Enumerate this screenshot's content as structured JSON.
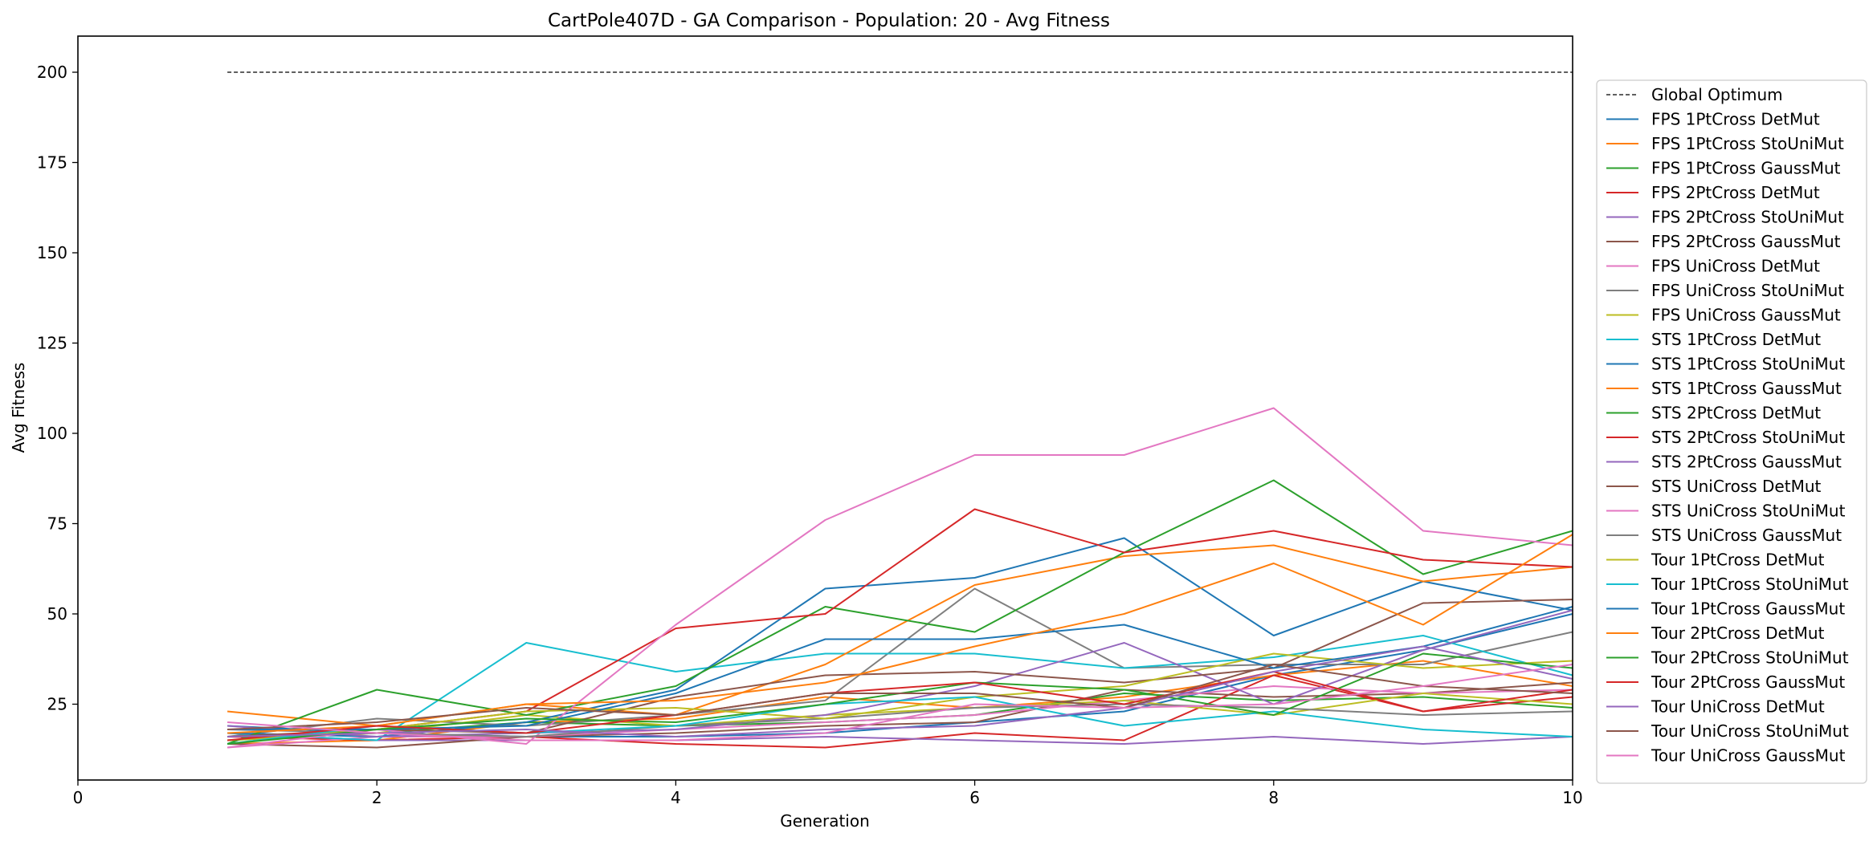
{
  "chart_data": {
    "type": "line",
    "title": "CartPole407D - GA Comparison - Population: 20 - Avg Fitness",
    "xlabel": "Generation",
    "ylabel": "Avg Fitness",
    "xlim": [
      0,
      10
    ],
    "ylim": [
      4,
      210
    ],
    "xticks": [
      0,
      2,
      4,
      6,
      8,
      10
    ],
    "yticks": [
      25,
      50,
      75,
      100,
      125,
      150,
      175,
      200
    ],
    "grid": false,
    "legend_position": "right, outside plot",
    "x": [
      1,
      2,
      3,
      4,
      5,
      6,
      7,
      8,
      9,
      10
    ],
    "reference_line": {
      "name": "Global Optimum",
      "y": 200,
      "x_from": 1,
      "x_to": 10,
      "color": "#000000",
      "style": "dashed"
    },
    "series": [
      {
        "name": "FPS 1PtCross DetMut",
        "color": "#1f77b4",
        "values": [
          19,
          17,
          16,
          16,
          17,
          20,
          23,
          33,
          40,
          50
        ]
      },
      {
        "name": "FPS 1PtCross StoUniMut",
        "color": "#ff7f0e",
        "values": [
          14,
          15,
          20,
          21,
          27,
          24,
          27,
          33,
          37,
          30
        ]
      },
      {
        "name": "FPS 1PtCross GaussMut",
        "color": "#2ca02c",
        "values": [
          15,
          17,
          20,
          19,
          20,
          22,
          28,
          26,
          27,
          24
        ]
      },
      {
        "name": "FPS 2PtCross DetMut",
        "color": "#d62728",
        "values": [
          16,
          15,
          16,
          14,
          13,
          17,
          15,
          33,
          23,
          27
        ]
      },
      {
        "name": "FPS 2PtCross StoUniMut",
        "color": "#9467bd",
        "values": [
          17,
          15,
          15,
          15,
          16,
          15,
          14,
          16,
          14,
          16
        ]
      },
      {
        "name": "FPS 2PtCross GaussMut",
        "color": "#8c564b",
        "values": [
          14,
          13,
          16,
          17,
          19,
          20,
          29,
          27,
          28,
          31
        ]
      },
      {
        "name": "FPS UniCross DetMut",
        "color": "#e377c2",
        "values": [
          13,
          16,
          16,
          18,
          20,
          22,
          26,
          30,
          28,
          29
        ]
      },
      {
        "name": "FPS UniCross StoUniMut",
        "color": "#7f7f7f",
        "values": [
          16,
          21,
          19,
          22,
          26,
          57,
          35,
          36,
          36,
          45
        ]
      },
      {
        "name": "FPS UniCross GaussMut",
        "color": "#bcbd22",
        "values": [
          15,
          17,
          22,
          19,
          22,
          24,
          26,
          22,
          28,
          25
        ]
      },
      {
        "name": "STS 1PtCross DetMut",
        "color": "#17becf",
        "values": [
          17,
          15,
          42,
          34,
          39,
          39,
          35,
          38,
          44,
          33
        ]
      },
      {
        "name": "STS 1PtCross StoUniMut",
        "color": "#1f77b4",
        "values": [
          17,
          16,
          20,
          29,
          57,
          60,
          71,
          44,
          59,
          51
        ]
      },
      {
        "name": "STS 1PtCross GaussMut",
        "color": "#ff7f0e",
        "values": [
          23,
          19,
          25,
          22,
          36,
          58,
          66,
          69,
          59,
          63
        ]
      },
      {
        "name": "STS 2PtCross DetMut",
        "color": "#2ca02c",
        "values": [
          14,
          29,
          22,
          30,
          52,
          45,
          67,
          87,
          61,
          73
        ]
      },
      {
        "name": "STS 2PtCross StoUniMut",
        "color": "#d62728",
        "values": [
          18,
          18,
          23,
          46,
          50,
          79,
          67,
          73,
          65,
          63
        ]
      },
      {
        "name": "STS 2PtCross GaussMut",
        "color": "#9467bd",
        "values": [
          19,
          16,
          17,
          18,
          22,
          30,
          42,
          25,
          40,
          51
        ]
      },
      {
        "name": "STS UniCross DetMut",
        "color": "#8c564b",
        "values": [
          16,
          18,
          17,
          27,
          33,
          34,
          31,
          35,
          53,
          54
        ]
      },
      {
        "name": "STS UniCross StoUniMut",
        "color": "#e377c2",
        "values": [
          13,
          18,
          14,
          47,
          76,
          94,
          94,
          107,
          73,
          69
        ]
      },
      {
        "name": "STS UniCross GaussMut",
        "color": "#7f7f7f",
        "values": [
          18,
          17,
          16,
          19,
          21,
          24,
          25,
          24,
          22,
          23
        ]
      },
      {
        "name": "Tour 1PtCross DetMut",
        "color": "#bcbd22",
        "values": [
          15,
          18,
          23,
          24,
          21,
          27,
          30,
          39,
          35,
          37
        ]
      },
      {
        "name": "Tour 1PtCross StoUniMut",
        "color": "#17becf",
        "values": [
          14,
          19,
          17,
          19,
          25,
          27,
          19,
          23,
          18,
          16
        ]
      },
      {
        "name": "Tour 1PtCross GaussMut",
        "color": "#1f77b4",
        "values": [
          18,
          18,
          19,
          28,
          43,
          43,
          47,
          35,
          41,
          52
        ]
      },
      {
        "name": "Tour 2PtCross DetMut",
        "color": "#ff7f0e",
        "values": [
          17,
          19,
          25,
          26,
          31,
          41,
          50,
          64,
          47,
          72
        ]
      },
      {
        "name": "Tour 2PtCross StoUniMut",
        "color": "#2ca02c",
        "values": [
          14,
          18,
          21,
          20,
          25,
          31,
          29,
          22,
          39,
          35
        ]
      },
      {
        "name": "Tour 2PtCross GaussMut",
        "color": "#d62728",
        "values": [
          15,
          19,
          17,
          22,
          28,
          31,
          25,
          34,
          23,
          29
        ]
      },
      {
        "name": "Tour UniCross DetMut",
        "color": "#9467bd",
        "values": [
          16,
          17,
          18,
          16,
          18,
          19,
          24,
          34,
          41,
          32
        ]
      },
      {
        "name": "Tour UniCross StoUniMut",
        "color": "#8c564b",
        "values": [
          18,
          20,
          24,
          22,
          28,
          28,
          24,
          36,
          30,
          28
        ]
      },
      {
        "name": "Tour UniCross GaussMut",
        "color": "#e377c2",
        "values": [
          20,
          17,
          15,
          15,
          17,
          25,
          24,
          25,
          30,
          36
        ]
      }
    ]
  }
}
